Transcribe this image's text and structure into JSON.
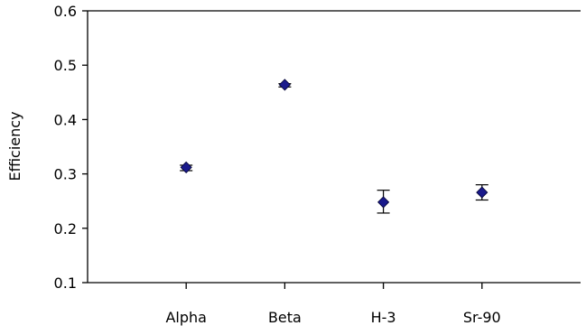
{
  "chart_data": {
    "type": "scatter",
    "title": "",
    "xlabel": "",
    "ylabel": "Efficiency",
    "categories": [
      "Alpha",
      "Beta",
      "H-3",
      "Sr-90"
    ],
    "values": [
      0.312,
      0.464,
      0.248,
      0.266
    ],
    "error_low": [
      0.306,
      0.46,
      0.228,
      0.252
    ],
    "error_high": [
      0.316,
      0.466,
      0.27,
      0.28
    ],
    "ylim": [
      0.1,
      0.6
    ],
    "yticks": [
      "0.1",
      "0.2",
      "0.3",
      "0.4",
      "0.5",
      "0.6"
    ],
    "grid": false,
    "marker": "diamond",
    "marker_color": "#1a1a8c"
  }
}
